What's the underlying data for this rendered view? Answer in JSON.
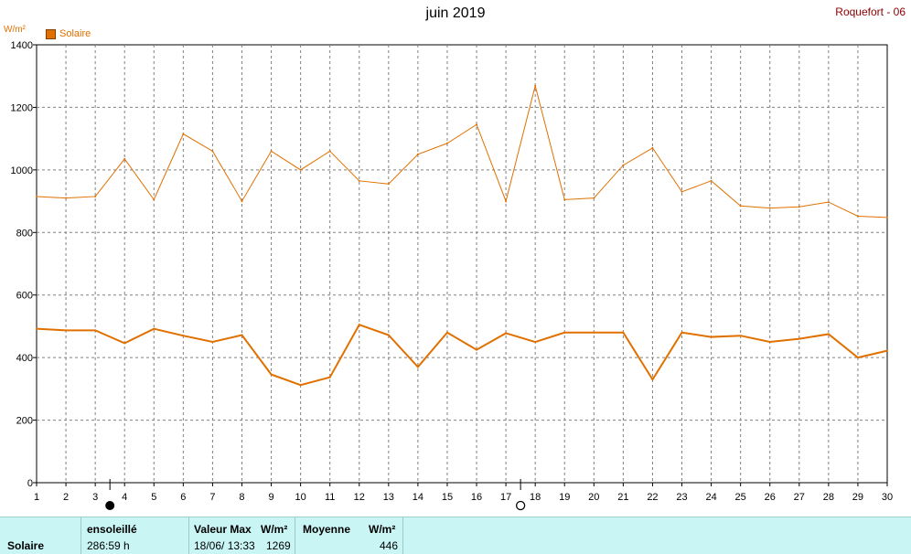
{
  "chart_data": {
    "type": "line",
    "title": "juin 2019",
    "station": "Roquefort - 06",
    "unit": "W/m²",
    "legend": "Solaire",
    "x": [
      1,
      2,
      3,
      4,
      5,
      6,
      7,
      8,
      9,
      10,
      11,
      12,
      13,
      14,
      15,
      16,
      17,
      18,
      19,
      20,
      21,
      22,
      23,
      24,
      25,
      26,
      27,
      28,
      29,
      30
    ],
    "ylim": [
      0,
      1400
    ],
    "yticks": [
      0,
      200,
      400,
      600,
      800,
      1000,
      1200,
      1400
    ],
    "series": [
      {
        "role": "max",
        "color": "#e07000",
        "values": [
          915,
          910,
          915,
          1035,
          905,
          1115,
          1060,
          900,
          1060,
          1000,
          1060,
          965,
          955,
          1050,
          1085,
          1145,
          900,
          1269,
          905,
          910,
          1015,
          1070,
          930,
          965,
          885,
          878,
          882,
          897,
          852,
          848
        ]
      },
      {
        "role": "mean",
        "color": "#e07000",
        "values": [
          492,
          487,
          487,
          446,
          492,
          470,
          450,
          472,
          346,
          312,
          337,
          505,
          472,
          370,
          480,
          425,
          478,
          450,
          480,
          480,
          480,
          330,
          480,
          466,
          470,
          450,
          460,
          475,
          400,
          422
        ]
      }
    ],
    "moon_markers": [
      {
        "day": 3.5,
        "type": "new-moon"
      },
      {
        "day": 17.5,
        "type": "full-moon"
      }
    ]
  },
  "footer": {
    "series_label": "Solaire",
    "sunshine_header": "ensoleillé",
    "sunshine_value": "286:59 h",
    "max_header": "Valeur Max",
    "max_unit": "W/m²",
    "max_date": "18/06/  13:33",
    "max_value": "1269",
    "mean_header": "Moyenne",
    "mean_unit": "W/m²",
    "mean_value": "446"
  }
}
